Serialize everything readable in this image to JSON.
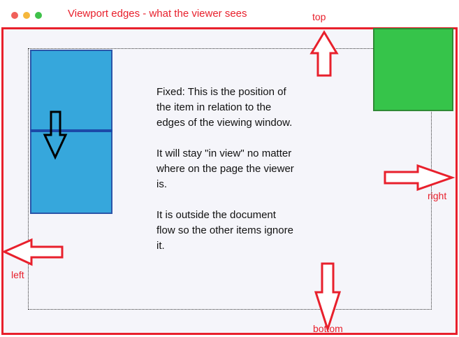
{
  "title": "Viewport edges - what the viewer sees",
  "labels": {
    "top": "top",
    "right": "right",
    "left": "left",
    "bottom": "bottom"
  },
  "description": [
    "Fixed: This is the position of the item in relation to the edges of the viewing window.",
    "It will stay \"in view\" no matter where on the page the viewer is.",
    "It is outside the document flow so the other items ignore it."
  ],
  "colors": {
    "edge": "#e8202c",
    "fixed_item": "#36c44a",
    "static_item": "#36a7dc"
  }
}
